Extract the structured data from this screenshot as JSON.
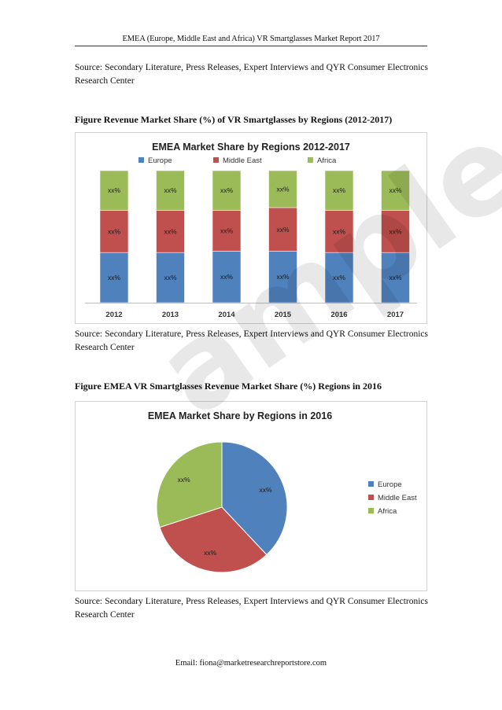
{
  "header": "EMEA (Europe, Middle East and Africa) VR Smartglasses Market Report 2017",
  "source_note": "Source: Secondary Literature, Press Releases, Expert Interviews and QYR Consumer Electronics Research Center",
  "figure1_title": "Figure Revenue Market Share (%) of VR Smartglasses by Regions (2012-2017)",
  "figure2_title": "Figure EMEA VR Smartglasses Revenue Market Share (%) Regions in 2016",
  "watermark": "ample",
  "footer": "Email: fiona@marketresearchreportstore.com",
  "colors": {
    "Europe": "#4f81bd",
    "Middle East": "#c0504d",
    "Africa": "#9bbb59"
  },
  "chart_data": [
    {
      "type": "bar",
      "stacked": true,
      "percent_stacked": true,
      "title": "EMEA Market Share by Regions 2012-2017",
      "categories": [
        "2012",
        "2013",
        "2014",
        "2015",
        "2016",
        "2017"
      ],
      "series": [
        {
          "name": "Europe",
          "values": [
            38,
            38,
            39,
            39,
            38,
            38
          ],
          "labels": [
            "xx%",
            "xx%",
            "xx%",
            "xx%",
            "xx%",
            "xx%"
          ]
        },
        {
          "name": "Middle East",
          "values": [
            32,
            32,
            31,
            33,
            32,
            32
          ],
          "labels": [
            "xx%",
            "xx%",
            "xx%",
            "xx%",
            "xx%",
            "xx%"
          ]
        },
        {
          "name": "Africa",
          "values": [
            30,
            30,
            30,
            28,
            30,
            30
          ],
          "labels": [
            "xx%",
            "xx%",
            "xx%",
            "xx%",
            "xx%",
            "xx%"
          ]
        }
      ],
      "legend": "top",
      "grid": false
    },
    {
      "type": "pie",
      "title": "EMEA Market Share by Regions in 2016",
      "slices": [
        {
          "name": "Europe",
          "value": 38,
          "label": "xx%"
        },
        {
          "name": "Middle East",
          "value": 32,
          "label": "xx%"
        },
        {
          "name": "Africa",
          "value": 30,
          "label": "xx%"
        }
      ],
      "legend": "right"
    }
  ]
}
